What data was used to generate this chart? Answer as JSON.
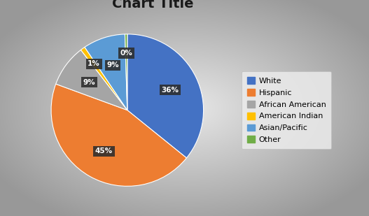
{
  "title": "Chart Title",
  "labels": [
    "White",
    "Hispanic",
    "African American",
    "American Indian",
    "Asian/Pacific",
    "Other"
  ],
  "values": [
    36,
    45,
    9,
    1,
    9,
    0.5
  ],
  "colors": [
    "#4472C4",
    "#ED7D31",
    "#A5A5A5",
    "#FFC000",
    "#5B9BD5",
    "#70AD47"
  ],
  "startangle": 90,
  "legend_labels": [
    "White",
    "Hispanic",
    "African American",
    "American Indian",
    "Asian/Pacific",
    "Other"
  ],
  "bg_gradient_inner": "#F0F0F0",
  "bg_gradient_outer": "#A8A8A8"
}
